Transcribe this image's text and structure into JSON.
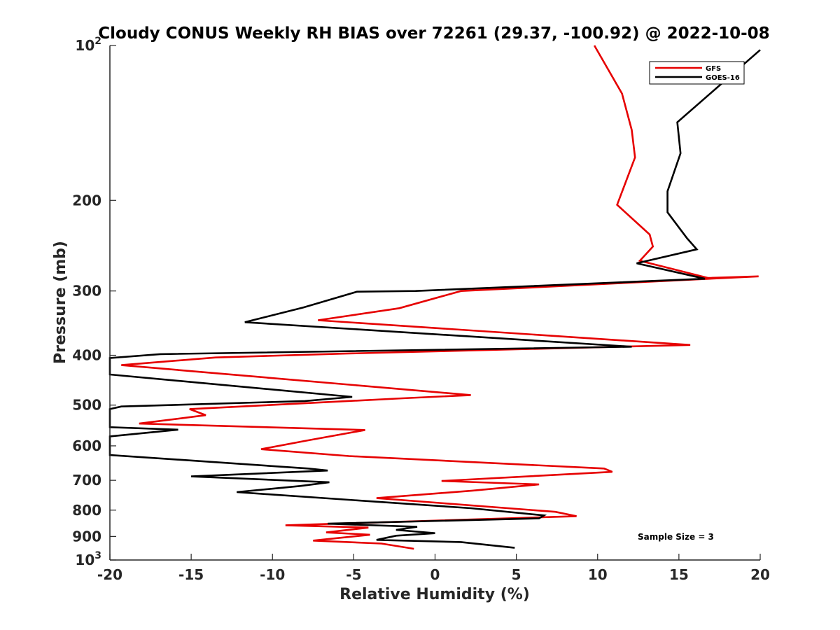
{
  "chart_data": {
    "type": "line",
    "title": "Cloudy CONUS Weekly RH BIAS over 72261 (29.37, -100.92) @ 2022-10-08",
    "xlabel": "Relative Humidity (%)",
    "ylabel": "Pressure (mb)",
    "xlim": [
      -20,
      20
    ],
    "ylim": [
      100,
      1000
    ],
    "y_scale": "log",
    "y_reversed": true,
    "x_ticks": [
      -20,
      -15,
      -10,
      -5,
      0,
      5,
      10,
      15,
      20
    ],
    "x_tick_labels": [
      "-20",
      "-15",
      "-10",
      "-5",
      "0",
      "5",
      "10",
      "15",
      "20"
    ],
    "y_ticks": [
      100,
      200,
      300,
      400,
      500,
      600,
      700,
      800,
      900,
      1000
    ],
    "y_tick_labels": [
      {
        "base": "10",
        "exp": "2"
      },
      {
        "base": "200",
        "exp": ""
      },
      {
        "base": "300",
        "exp": ""
      },
      {
        "base": "400",
        "exp": ""
      },
      {
        "base": "500",
        "exp": ""
      },
      {
        "base": "600",
        "exp": ""
      },
      {
        "base": "700",
        "exp": ""
      },
      {
        "base": "800",
        "exp": ""
      },
      {
        "base": "900",
        "exp": ""
      },
      {
        "base": "10",
        "exp": "3"
      }
    ],
    "grid": false,
    "legend_position": "top-right",
    "annotation": "Sample Size = 3",
    "series": [
      {
        "name": "GFS",
        "color": "#e60000",
        "x": [
          9.8,
          11.5,
          12.1,
          12.3,
          11.2,
          13.2,
          13.4,
          12.6,
          16.8,
          19.9,
          1.6,
          -2.2,
          -7.2,
          15.7,
          -5.5,
          -13.5,
          -19.3,
          2.2,
          -2.0,
          -15.1,
          -14.1,
          -18.2,
          -4.3,
          -8.0,
          -10.7,
          -5.3,
          10.4,
          10.9,
          0.4,
          6.4,
          2.3,
          -3.6,
          7.4,
          8.7,
          -9.2,
          -4.1,
          -6.7,
          -4.0,
          -7.5,
          -3.3,
          -1.3
        ],
        "y": [
          100,
          124,
          146,
          165,
          204,
          233,
          246,
          262,
          283,
          281,
          300,
          324,
          342,
          382,
          397,
          404,
          418,
          478,
          485,
          509,
          523,
          543,
          559,
          587,
          609,
          628,
          664,
          674,
          702,
          713,
          733,
          758,
          806,
          822,
          856,
          865,
          884,
          893,
          917,
          929,
          951
        ]
      },
      {
        "name": "GOES-16",
        "color": "#000000",
        "x": [
          20.0,
          14.9,
          15.1,
          14.3,
          14.3,
          15.5,
          16.1,
          12.4,
          16.6,
          -1.2,
          -4.8,
          -8.1,
          -11.7,
          12.1,
          -16.9,
          -20.0,
          -20.0,
          -5.1,
          -8.0,
          -19.3,
          -20.0,
          -20.0,
          -15.8,
          -20.0,
          -20.0,
          -7.8,
          -6.6,
          -15.0,
          -6.5,
          -8.3,
          -12.2,
          2.2,
          6.7,
          6.4,
          -6.6,
          -1.1,
          -2.4,
          0.0,
          -2.4,
          -3.6,
          1.6,
          4.9
        ],
        "y": [
          102,
          141,
          162,
          192,
          211,
          237,
          249,
          265,
          284,
          300,
          301,
          323,
          345,
          385,
          398,
          405,
          436,
          482,
          491,
          503,
          509,
          552,
          558,
          575,
          625,
          664,
          670,
          688,
          706,
          718,
          738,
          793,
          819,
          830,
          850,
          862,
          874,
          887,
          897,
          914,
          923,
          947
        ]
      }
    ]
  }
}
